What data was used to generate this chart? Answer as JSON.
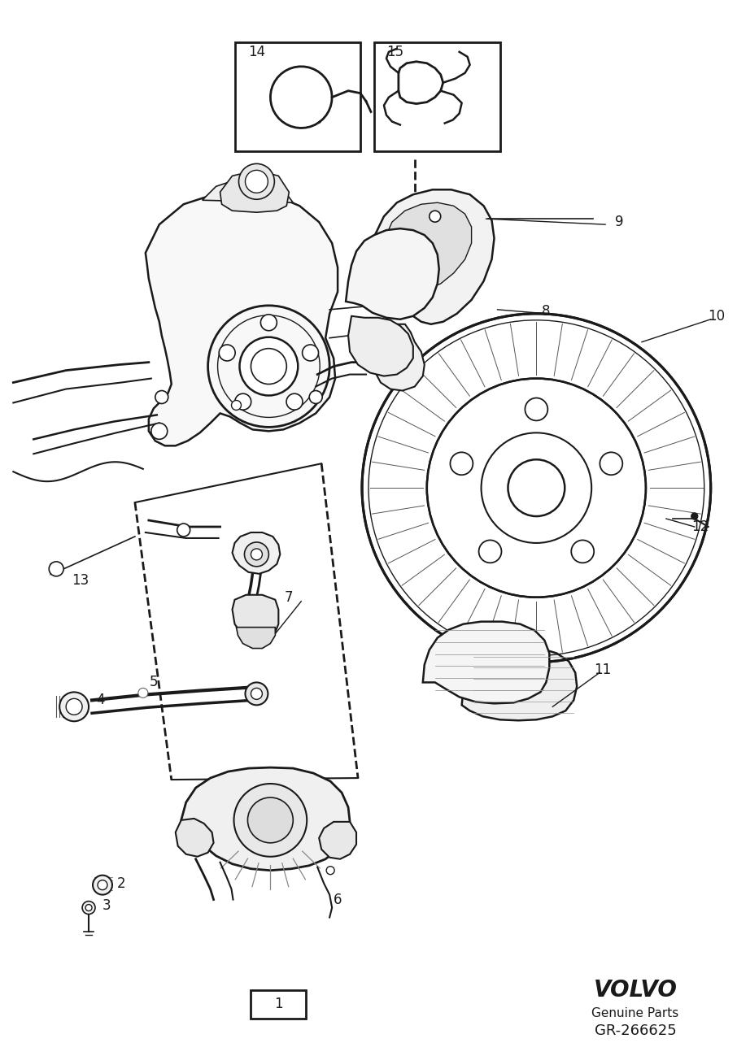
{
  "background_color": "#ffffff",
  "fig_width": 9.06,
  "fig_height": 12.99,
  "dpi": 100,
  "volvo_text": "VOLVO",
  "genuine_parts_text": "Genuine Parts",
  "part_number_text": "GR-266625",
  "volvo_font_size": 20,
  "genuine_font_size": 11,
  "part_num_font_size": 13,
  "label_fontsize": 12,
  "label_color": "#000000",
  "line_color": "#1a1a1a",
  "lw_main": 1.6,
  "lw_thin": 0.9,
  "lw_thick": 2.2
}
